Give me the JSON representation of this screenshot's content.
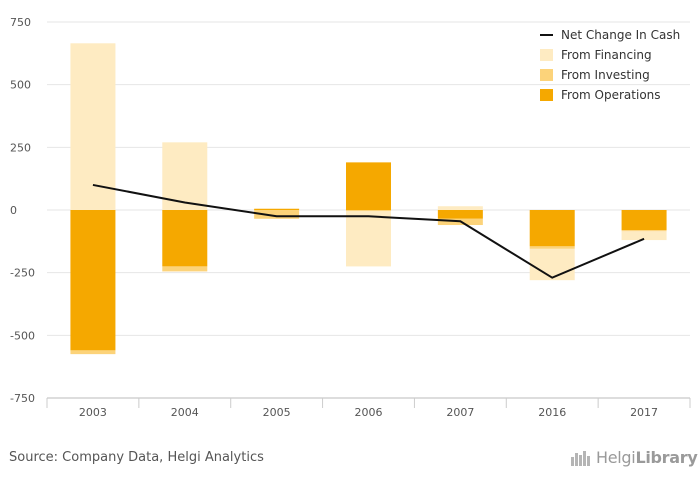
{
  "chart_data": {
    "type": "bar",
    "stacked": true,
    "categories": [
      "2003",
      "2004",
      "2005",
      "2006",
      "2007",
      "2016",
      "2017"
    ],
    "ylim": [
      -750,
      750
    ],
    "yticks": [
      750,
      500,
      250,
      0,
      -250,
      -500,
      -750
    ],
    "ytick_labels": [
      "750",
      "500",
      "250",
      "0",
      "-250",
      "-500",
      "-750"
    ],
    "grid": true,
    "legend_position": "top-right",
    "series": [
      {
        "name": "From Operations",
        "type": "bar",
        "color": "#f5a800",
        "values": [
          -560,
          -225,
          5,
          190,
          -35,
          -145,
          -80
        ]
      },
      {
        "name": "From Investing",
        "type": "bar",
        "color": "#fcd37a",
        "values": [
          -15,
          -20,
          -35,
          -5,
          -25,
          -10,
          -5
        ]
      },
      {
        "name": "From Financing",
        "type": "bar",
        "color": "#feebc2",
        "values": [
          665,
          270,
          0,
          -220,
          15,
          -125,
          -35
        ]
      },
      {
        "name": "Net Change In Cash",
        "type": "line",
        "color": "#111111",
        "values": [
          100,
          30,
          -25,
          -25,
          -45,
          -270,
          -115
        ]
      }
    ],
    "legend": [
      "Net Change In Cash",
      "From Financing",
      "From Investing",
      "From Operations"
    ]
  },
  "footer": {
    "source": "Source: Company Data, Helgi Analytics",
    "logo_text_regular": "Helgi",
    "logo_text_bold": "Library"
  }
}
